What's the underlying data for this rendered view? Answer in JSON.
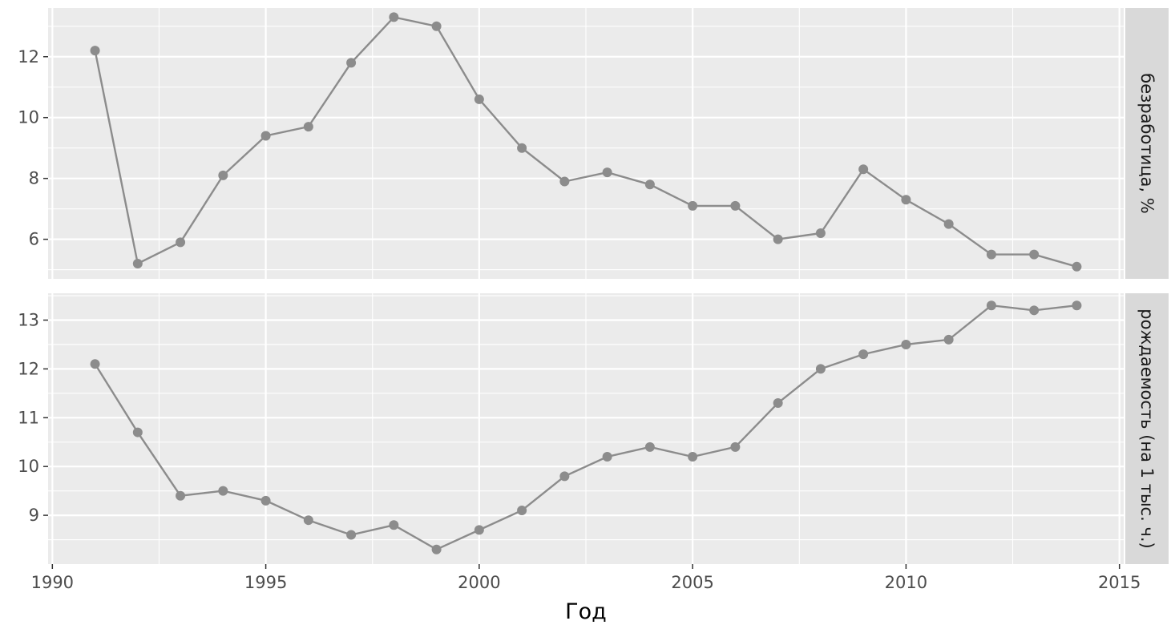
{
  "chart_data": {
    "type": "line",
    "xlabel": "Год",
    "x_ticks": [
      1990,
      1995,
      2000,
      2005,
      2010,
      2015
    ],
    "xlim": [
      1989.9,
      2015.1
    ],
    "x": [
      1991,
      1992,
      1993,
      1994,
      1995,
      1996,
      1997,
      1998,
      1999,
      2000,
      2001,
      2002,
      2003,
      2004,
      2005,
      2006,
      2007,
      2008,
      2009,
      2010,
      2011,
      2012,
      2013,
      2014
    ],
    "grid": true,
    "facets": [
      {
        "strip_label": "безработица, %",
        "ylim": [
          4.7,
          13.6
        ],
        "y_ticks": [
          6,
          8,
          10,
          12
        ],
        "values": [
          12.2,
          5.2,
          5.9,
          8.1,
          9.4,
          9.7,
          11.8,
          13.3,
          13.0,
          10.6,
          9.0,
          7.9,
          8.2,
          7.8,
          7.1,
          7.1,
          6.0,
          6.2,
          8.3,
          7.3,
          6.5,
          5.5,
          5.5,
          5.1
        ]
      },
      {
        "strip_label": "рождаемость (на 1 тыс. ч.)",
        "ylim": [
          8.0,
          13.55
        ],
        "y_ticks": [
          9,
          10,
          11,
          12,
          13
        ],
        "values": [
          12.1,
          10.7,
          9.4,
          9.5,
          9.3,
          8.9,
          8.6,
          8.8,
          8.3,
          8.7,
          9.1,
          9.8,
          10.2,
          10.4,
          10.2,
          10.4,
          11.3,
          12.0,
          12.3,
          12.5,
          12.6,
          13.3,
          13.2,
          13.3
        ]
      }
    ]
  }
}
